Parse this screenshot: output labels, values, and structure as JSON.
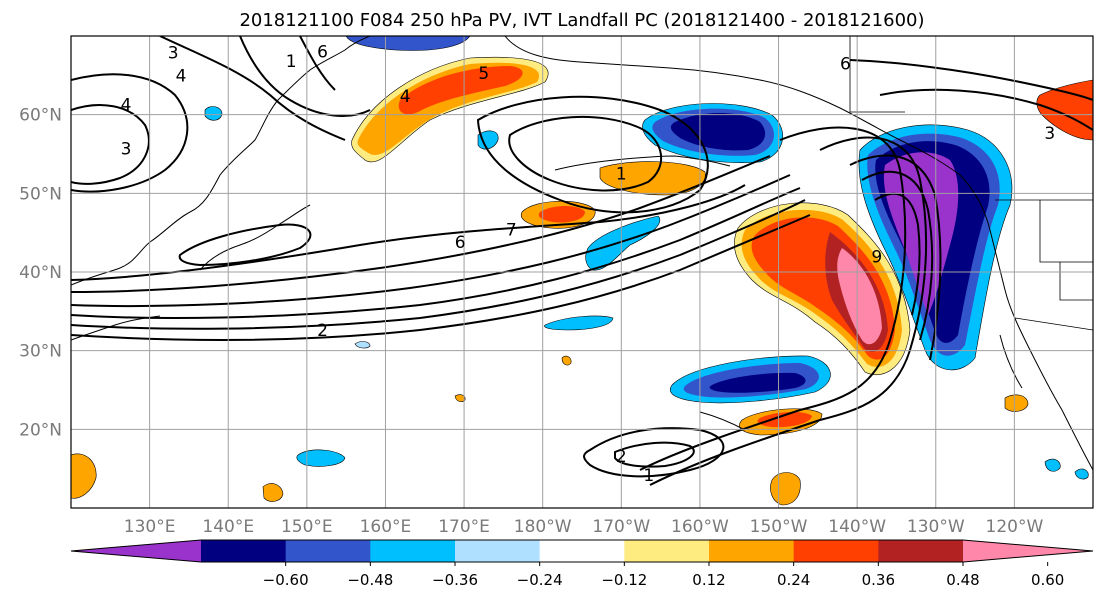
{
  "title": "2018121100 F084 250 hPa PV, IVT Landfall PC (2018121400 - 2018121600)",
  "map": {
    "lon_range": [
      120,
      250
    ],
    "lat_range": [
      10,
      70
    ],
    "lon_ticks": [
      {
        "lon": 130,
        "label": "130°E"
      },
      {
        "lon": 140,
        "label": "140°E"
      },
      {
        "lon": 150,
        "label": "150°E"
      },
      {
        "lon": 160,
        "label": "160°E"
      },
      {
        "lon": 170,
        "label": "170°E"
      },
      {
        "lon": 180,
        "label": "180°W"
      },
      {
        "lon": 190,
        "label": "170°W"
      },
      {
        "lon": 200,
        "label": "160°W"
      },
      {
        "lon": 210,
        "label": "150°W"
      },
      {
        "lon": 220,
        "label": "140°W"
      },
      {
        "lon": 230,
        "label": "130°W"
      },
      {
        "lon": 240,
        "label": "120°W"
      }
    ],
    "lat_ticks": [
      {
        "lat": 20,
        "label": "20°N"
      },
      {
        "lat": 30,
        "label": "30°N"
      },
      {
        "lat": 40,
        "label": "40°N"
      },
      {
        "lat": 50,
        "label": "50°N"
      },
      {
        "lat": 60,
        "label": "60°N"
      }
    ],
    "contour_labels": [
      {
        "text": "3",
        "lon": 133.0,
        "lat": 67.9
      },
      {
        "text": "4",
        "lon": 134.0,
        "lat": 65.0
      },
      {
        "text": "4",
        "lon": 127.0,
        "lat": 61.3
      },
      {
        "text": "3",
        "lon": 127.0,
        "lat": 55.7
      },
      {
        "text": "1",
        "lon": 148.0,
        "lat": 66.8
      },
      {
        "text": "6",
        "lon": 152.0,
        "lat": 68.0
      },
      {
        "text": "5",
        "lon": 172.5,
        "lat": 65.3
      },
      {
        "text": "4",
        "lon": 162.5,
        "lat": 62.4
      },
      {
        "text": "1",
        "lon": 190.0,
        "lat": 52.5
      },
      {
        "text": "7",
        "lon": 176.0,
        "lat": 45.4
      },
      {
        "text": "6",
        "lon": 169.5,
        "lat": 43.8
      },
      {
        "text": "2",
        "lon": 152.0,
        "lat": 32.6
      },
      {
        "text": "6",
        "lon": 218.5,
        "lat": 66.5
      },
      {
        "text": "3",
        "lon": 244.5,
        "lat": 57.7
      },
      {
        "text": "2",
        "lon": 190.0,
        "lat": 16.6
      },
      {
        "text": "1",
        "lon": 193.5,
        "lat": 14.2
      },
      {
        "text": "9",
        "lon": 222.5,
        "lat": 42.0
      }
    ]
  },
  "colorbar": {
    "colors": [
      "#9933cc",
      "#000080",
      "#3355cc",
      "#00bfff",
      "#b0e0ff",
      "#ffffff",
      "#ffec80",
      "#ffa500",
      "#ff4000",
      "#b22222",
      "#ff88aa"
    ],
    "tick_labels": [
      "−0.60",
      "−0.48",
      "−0.36",
      "−0.24",
      "−0.12",
      "0.12",
      "0.24",
      "0.36",
      "0.48",
      "0.60"
    ]
  }
}
